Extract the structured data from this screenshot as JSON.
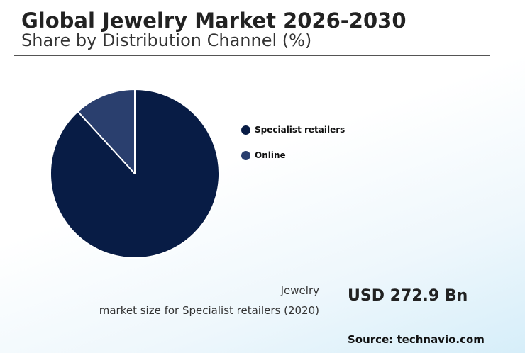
{
  "header": {
    "title": "Global Jewelry Market 2026-2030",
    "subtitle": "Share by Distribution Channel (%)"
  },
  "chart_data": {
    "type": "pie",
    "categories": [
      "Specialist retailers",
      "Online"
    ],
    "values": [
      88.2,
      11.8
    ],
    "colors": [
      "#081c45",
      "#2a3f6e"
    ],
    "slice_edge_color": "#ffffff",
    "start_angle_deg": 0,
    "direction": "clockwise",
    "legend_position": "right"
  },
  "legend": {
    "items": [
      {
        "label": "Specialist retailers",
        "color": "#081c45"
      },
      {
        "label": "Online",
        "color": "#2a3f6e"
      }
    ]
  },
  "footer": {
    "caption_line1": "Jewelry",
    "caption_line2": "market size for Specialist retailers (2020)",
    "value": "USD 272.9 Bn",
    "source": "Source: technavio.com"
  }
}
